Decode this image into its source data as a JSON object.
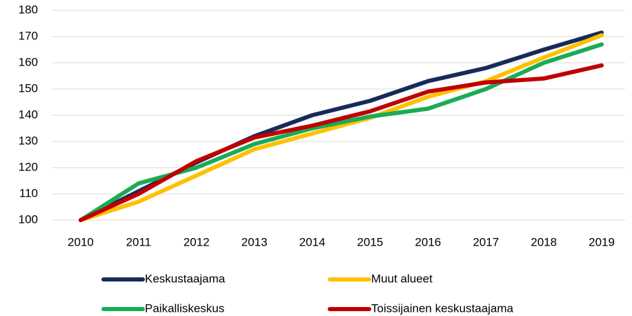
{
  "chart_data": {
    "type": "line",
    "categories": [
      "2010",
      "2011",
      "2012",
      "2013",
      "2014",
      "2015",
      "2016",
      "2017",
      "2018",
      "2019"
    ],
    "series": [
      {
        "name": "Keskustaajama",
        "color": "#172a5a",
        "values": [
          100,
          111,
          122,
          132,
          140,
          145.5,
          153,
          158,
          165,
          171.5
        ]
      },
      {
        "name": "Muut alueet",
        "color": "#ffc000",
        "values": [
          100,
          107,
          117,
          127,
          133,
          139,
          147,
          153,
          162,
          170.5
        ]
      },
      {
        "name": "Paikalliskeskus",
        "color": "#1aab55",
        "values": [
          100,
          114,
          120,
          129,
          135,
          139.5,
          142.5,
          150,
          160,
          167
        ]
      },
      {
        "name": "Toissijainen keskustaajama",
        "color": "#c00000",
        "values": [
          100,
          110,
          122.5,
          131.5,
          136,
          141.5,
          149,
          152.5,
          154,
          159
        ]
      }
    ],
    "ylim": [
      100,
      180
    ],
    "yticks": [
      100,
      110,
      120,
      130,
      140,
      150,
      160,
      170,
      180
    ],
    "grid": true
  }
}
